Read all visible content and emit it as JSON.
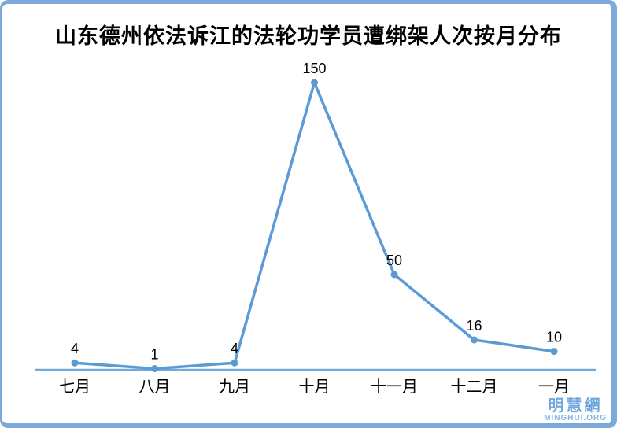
{
  "chart_data": {
    "type": "line",
    "title": "山东德州依法诉江的法轮功学员遭绑架人次按月分布",
    "categories": [
      "七月",
      "八月",
      "九月",
      "十月",
      "十一月",
      "十二月",
      "一月"
    ],
    "values": [
      4,
      1,
      4,
      150,
      50,
      16,
      10
    ],
    "xlabel": "",
    "ylabel": "",
    "ylim": [
      0,
      150
    ],
    "grid": false,
    "legend": "none",
    "data_labels_shown": true,
    "colors": {
      "series": "#5B9BD5",
      "marker": "#5B9BD5",
      "axis_line": "#74A8DA",
      "title": "#000000",
      "data_label": "#000000",
      "tick_label": "#000000"
    }
  },
  "watermark": {
    "cn": "明慧網",
    "en": "MINGHUI.ORG",
    "color_cn": "#6FA6DC",
    "color_en": "#86B6E3"
  },
  "frame": {
    "border_color": "#7CAADB",
    "background": "#FFFFFF"
  }
}
